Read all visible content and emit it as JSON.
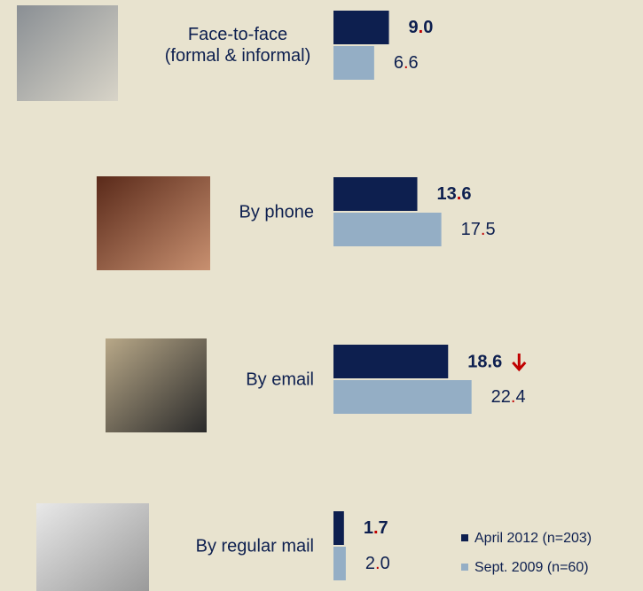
{
  "chart_data": {
    "type": "bar",
    "orientation": "horizontal",
    "categories": [
      "Face-to-face\n(formal & informal)",
      "By phone",
      "By email",
      "By regular mail"
    ],
    "series": [
      {
        "name": "April 2012 (n=203)",
        "color": "#0d1f4f",
        "values": [
          9.0,
          13.6,
          18.6,
          1.7
        ],
        "value_labels": [
          "9.0",
          "13.6",
          "18.6",
          "1.7"
        ]
      },
      {
        "name": "Sept. 2009 (n=60)",
        "color": "#94aec5",
        "values": [
          6.6,
          17.5,
          22.4,
          2.0
        ],
        "value_labels": [
          "6.6",
          "17.5",
          "22.4",
          "2.0"
        ]
      }
    ]
  }
}
